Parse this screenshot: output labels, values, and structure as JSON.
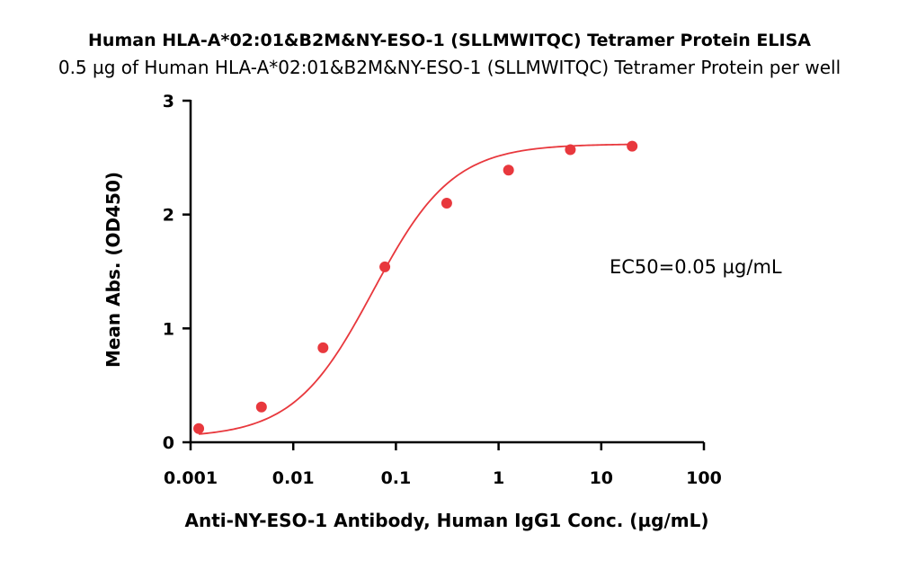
{
  "chart_data": {
    "type": "scatter",
    "title": "Human HLA-A*02:01&B2M&NY-ESO-1 (SLLMWITQC) Tetramer Protein ELISA",
    "subtitle": "0.5 µg of Human HLA-A*02:01&B2M&NY-ESO-1 (SLLMWITQC) Tetramer Protein per well",
    "xlabel": "Anti-NY-ESO-1 Antibody, Human IgG1 Conc. (µg/mL)",
    "ylabel": "Mean Abs. (OD450)",
    "x_scale": "log",
    "xlim": [
      0.001,
      100
    ],
    "ylim": [
      0,
      3
    ],
    "x_ticks": [
      "0.001",
      "0.01",
      "0.1",
      "1",
      "10",
      "100"
    ],
    "x_tick_values": [
      0.001,
      0.01,
      0.1,
      1,
      10,
      100
    ],
    "y_ticks": [
      "0",
      "1",
      "2",
      "3"
    ],
    "y_tick_values": [
      0,
      1,
      2,
      3
    ],
    "grid": false,
    "series": [
      {
        "x": [
          0.0012,
          0.0049,
          0.0195,
          0.078,
          0.3125,
          1.25,
          5,
          20
        ],
        "y": [
          0.12,
          0.31,
          0.83,
          1.54,
          2.1,
          2.39,
          2.57,
          2.6
        ],
        "color": "#e8383d",
        "fit": "four-parameter logistic"
      }
    ],
    "annotation": "EC50=0.05 µg/mL"
  }
}
